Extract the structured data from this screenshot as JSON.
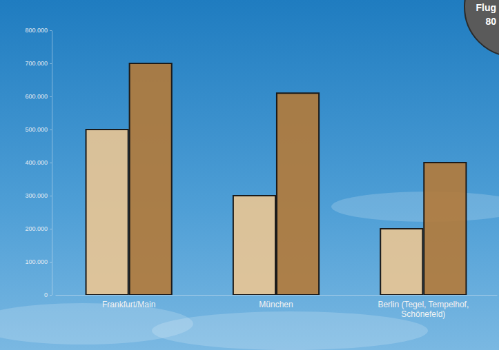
{
  "chart_data": {
    "type": "bar",
    "categories": [
      "Frankfurt/Main",
      "München",
      "Berlin (Tegel, Tempelhof, Schönefeld)"
    ],
    "series": [
      {
        "color": "#eac592",
        "values": [
          500000,
          300000,
          200000
        ]
      },
      {
        "color": "#b47a38",
        "values": [
          700000,
          610000,
          400000
        ]
      }
    ],
    "ylim": [
      0,
      800000
    ],
    "yticks": [
      0,
      {
        "value": 100000,
        "label": "100.000"
      },
      {
        "value": 200000,
        "label": "200.000"
      },
      {
        "value": 300000,
        "label": "300.000"
      },
      {
        "value": 400000,
        "label": "400.000"
      },
      {
        "value": 500000,
        "label": "500.000"
      },
      {
        "value": 600000,
        "label": "600.000"
      },
      {
        "value": 700000,
        "label": "700.000"
      },
      {
        "value": 800000,
        "label": "800.000"
      }
    ],
    "grid": false,
    "annotations": [
      "Flug",
      "80"
    ]
  }
}
